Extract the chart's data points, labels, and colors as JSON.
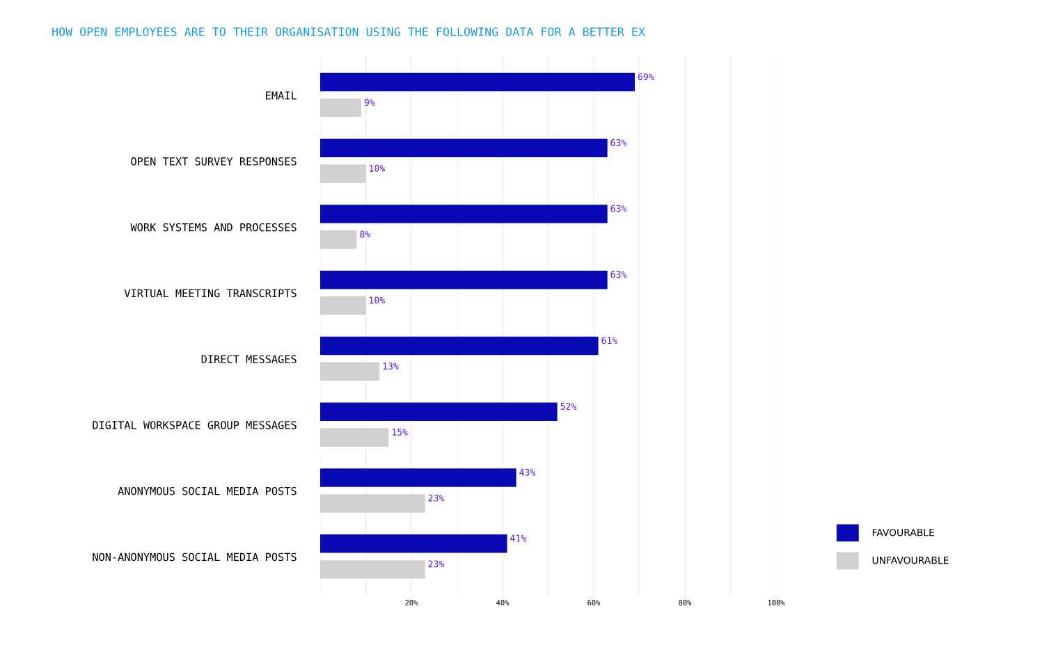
{
  "chart_data": {
    "type": "bar",
    "orientation": "horizontal",
    "title": "HOW OPEN EMPLOYEES ARE TO THEIR ORGANISATION USING THE FOLLOWING DATA FOR A BETTER EX",
    "categories": [
      "EMAIL",
      "OPEN TEXT SURVEY RESPONSES",
      "WORK SYSTEMS AND PROCESSES",
      "VIRTUAL MEETING TRANSCRIPTS",
      "DIRECT MESSAGES",
      "DIGITAL WORKSPACE GROUP MESSAGES",
      "ANONYMOUS SOCIAL MEDIA POSTS",
      "NON-ANONYMOUS SOCIAL MEDIA POSTS"
    ],
    "series": [
      {
        "name": "FAVOURABLE",
        "color": "#0a0ab4",
        "values": [
          69,
          63,
          63,
          63,
          61,
          52,
          43,
          41
        ],
        "value_labels": [
          "69%",
          "63%",
          "63%",
          "63%",
          "61%",
          "52%",
          "43%",
          "41%"
        ]
      },
      {
        "name": "UNFAVOURABLE",
        "color": "#d0d1d0",
        "values": [
          9,
          10,
          8,
          10,
          13,
          15,
          23,
          23
        ],
        "value_labels": [
          "9%",
          "10%",
          "8%",
          "10%",
          "13%",
          "15%",
          "23%",
          "23%"
        ]
      }
    ],
    "xlim": [
      0,
      100
    ],
    "xticks": [
      {
        "value": 0,
        "label": null
      },
      {
        "value": 10,
        "label": null
      },
      {
        "value": 20,
        "label": "20%"
      },
      {
        "value": 30,
        "label": null
      },
      {
        "value": 40,
        "label": "40%"
      },
      {
        "value": 50,
        "label": null
      },
      {
        "value": 60,
        "label": "60%"
      },
      {
        "value": 70,
        "label": null
      },
      {
        "value": 80,
        "label": "80%"
      },
      {
        "value": 90,
        "label": null
      },
      {
        "value": 100,
        "label": "100%"
      }
    ],
    "grid": "x",
    "legend": "bottom right"
  }
}
